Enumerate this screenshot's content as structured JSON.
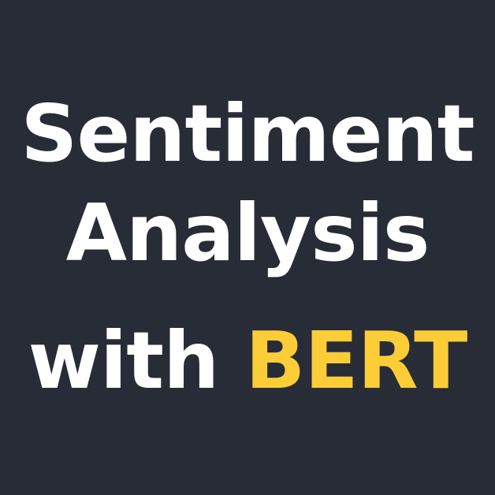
{
  "title": {
    "line1": "Sentiment",
    "line2": "Analysis",
    "line3_plain": "with",
    "line3_highlight": "BERT"
  },
  "colors": {
    "background": "#282c36",
    "text": "#ffffff",
    "highlight": "#fdcd38"
  }
}
